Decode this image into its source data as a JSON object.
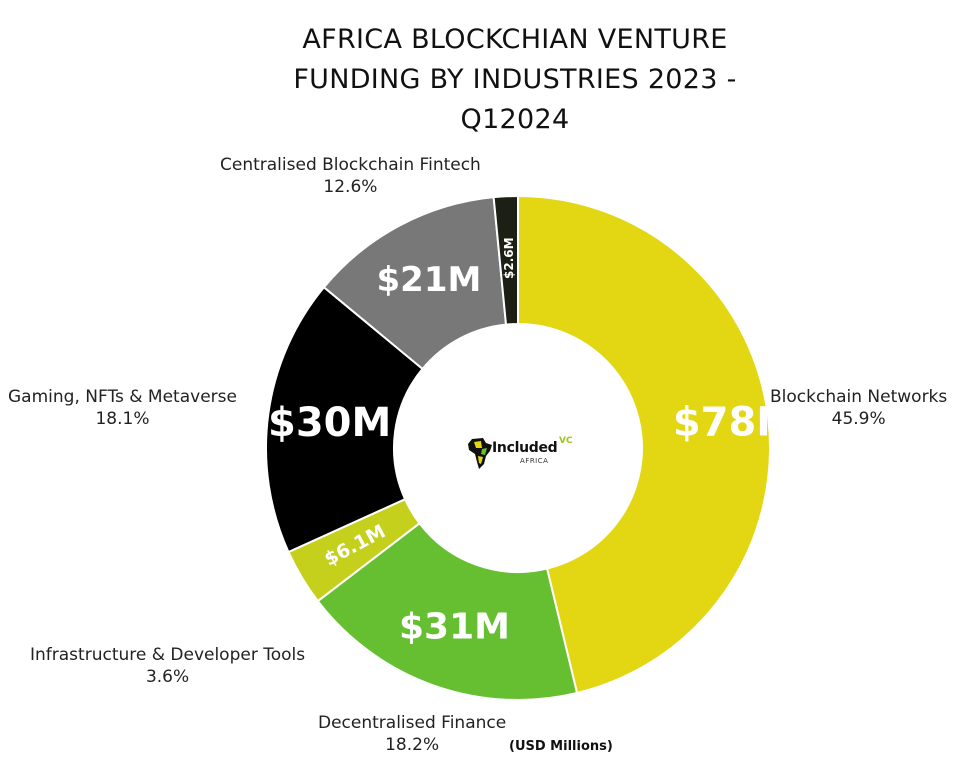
{
  "title_lines": [
    "AFRICA BLOCKCHIAN VENTURE",
    "FUNDING BY INDUSTRIES 2023 -",
    "Q12024"
  ],
  "unit_note": "(USD Millions)",
  "logo": {
    "name": "Included",
    "sup": "VC",
    "sub": "AFRICA"
  },
  "chart_data": {
    "type": "pie",
    "variant": "donut",
    "title": "AFRICA BLOCKCHIAN VENTURE FUNDING BY INDUSTRIES 2023 - Q12024",
    "categories": [
      "Blockchain Networks",
      "Decentralised Finance",
      "Infrastructure & Developer Tools",
      "Gaming, NFTs & Metaverse",
      "Centralised Blockchain Fintech",
      ""
    ],
    "values": [
      78,
      31,
      6.1,
      30,
      21,
      2.6
    ],
    "value_labels": [
      "$78M",
      "$31M",
      "$6.1M",
      "$30M",
      "$21M",
      "$2.6M"
    ],
    "percent_labels": [
      "45.9%",
      "18.2%",
      "3.6%",
      "18.1%",
      "12.6%",
      ""
    ],
    "colors": [
      "#e3d613",
      "#66bf31",
      "#c5d01d",
      "#000000",
      "#787878",
      "#1c1f13"
    ],
    "unit": "USD Millions"
  }
}
